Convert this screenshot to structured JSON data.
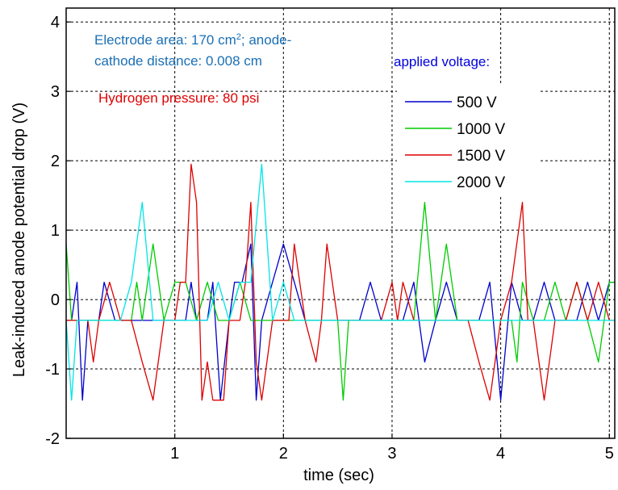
{
  "chart_data": {
    "type": "line",
    "xlabel": "time (sec)",
    "ylabel": "Leak-induced anode potential drop (V)",
    "xlim": [
      0,
      5.05
    ],
    "ylim": [
      -2,
      4.2
    ],
    "xticks": [
      1,
      2,
      3,
      4,
      5
    ],
    "yticks": [
      -2,
      -1,
      0,
      1,
      2,
      3,
      4
    ],
    "grid": true,
    "annotations": {
      "electrode_line1_pre": "Electrode area: 170 cm",
      "electrode_sup": "2",
      "electrode_line1_post": "; anode-",
      "electrode_line2": "cathode distance: 0.008 cm",
      "hydrogen": "Hydrogen pressure: 80 psi",
      "legend_title": "applied voltage:"
    },
    "legend_placement": "top-right",
    "series": [
      {
        "name": "500 V",
        "color": "#0000cc",
        "points": [
          [
            0,
            -0.3
          ],
          [
            0.05,
            -0.3
          ],
          [
            0.1,
            0.25
          ],
          [
            0.15,
            -1.45
          ],
          [
            0.2,
            -0.3
          ],
          [
            0.3,
            -0.3
          ],
          [
            0.35,
            0.25
          ],
          [
            0.45,
            -0.3
          ],
          [
            0.6,
            -0.3
          ],
          [
            0.7,
            -0.3
          ],
          [
            0.8,
            -0.3
          ],
          [
            1.0,
            -0.3
          ],
          [
            1.1,
            -0.3
          ],
          [
            1.15,
            0.25
          ],
          [
            1.2,
            -0.3
          ],
          [
            1.3,
            -0.3
          ],
          [
            1.35,
            0.25
          ],
          [
            1.42,
            -1.45
          ],
          [
            1.5,
            -0.3
          ],
          [
            1.55,
            0.25
          ],
          [
            1.62,
            0.25
          ],
          [
            1.7,
            0.8
          ],
          [
            1.75,
            -1.45
          ],
          [
            1.8,
            -0.3
          ],
          [
            1.9,
            0.25
          ],
          [
            2.0,
            0.8
          ],
          [
            2.1,
            0.25
          ],
          [
            2.2,
            -0.3
          ],
          [
            2.5,
            -0.3
          ],
          [
            2.7,
            -0.3
          ],
          [
            2.8,
            0.25
          ],
          [
            2.9,
            -0.3
          ],
          [
            3.0,
            -0.3
          ],
          [
            3.1,
            -0.3
          ],
          [
            3.2,
            0.25
          ],
          [
            3.3,
            -0.9
          ],
          [
            3.4,
            -0.3
          ],
          [
            3.5,
            0.25
          ],
          [
            3.6,
            -0.3
          ],
          [
            3.8,
            -0.3
          ],
          [
            3.9,
            0.25
          ],
          [
            4.0,
            -1.45
          ],
          [
            4.1,
            0.25
          ],
          [
            4.2,
            -0.3
          ],
          [
            4.3,
            -0.3
          ],
          [
            4.4,
            0.25
          ],
          [
            4.5,
            -0.3
          ],
          [
            4.7,
            -0.3
          ],
          [
            4.8,
            0.25
          ],
          [
            4.9,
            -0.3
          ],
          [
            5.0,
            0.25
          ],
          [
            5.05,
            0.25
          ]
        ]
      },
      {
        "name": "1000 V",
        "color": "#00cc00",
        "points": [
          [
            0,
            0.8
          ],
          [
            0.05,
            -0.3
          ],
          [
            0.1,
            -0.3
          ],
          [
            0.2,
            -0.3
          ],
          [
            0.3,
            -0.3
          ],
          [
            0.4,
            -0.3
          ],
          [
            0.5,
            -0.3
          ],
          [
            0.6,
            -0.3
          ],
          [
            0.65,
            0.25
          ],
          [
            0.7,
            -0.3
          ],
          [
            0.8,
            0.8
          ],
          [
            0.9,
            -0.3
          ],
          [
            1.0,
            0.25
          ],
          [
            1.1,
            0.25
          ],
          [
            1.2,
            -0.3
          ],
          [
            1.3,
            0.25
          ],
          [
            1.4,
            -0.3
          ],
          [
            1.5,
            -0.3
          ],
          [
            1.6,
            0.25
          ],
          [
            1.7,
            -0.3
          ],
          [
            1.8,
            -0.3
          ],
          [
            1.9,
            -0.3
          ],
          [
            2.0,
            -0.3
          ],
          [
            2.1,
            -0.3
          ],
          [
            2.2,
            -0.3
          ],
          [
            2.3,
            -0.3
          ],
          [
            2.4,
            -0.3
          ],
          [
            2.5,
            -0.3
          ],
          [
            2.55,
            -1.45
          ],
          [
            2.6,
            -0.3
          ],
          [
            2.7,
            -0.3
          ],
          [
            2.8,
            -0.3
          ],
          [
            2.9,
            -0.3
          ],
          [
            3.0,
            -0.3
          ],
          [
            3.1,
            -0.3
          ],
          [
            3.2,
            -0.3
          ],
          [
            3.3,
            1.4
          ],
          [
            3.4,
            -0.3
          ],
          [
            3.5,
            0.8
          ],
          [
            3.6,
            -0.3
          ],
          [
            3.7,
            -0.3
          ],
          [
            3.8,
            -0.3
          ],
          [
            3.9,
            -0.3
          ],
          [
            4.0,
            -0.3
          ],
          [
            4.1,
            -0.3
          ],
          [
            4.15,
            -0.9
          ],
          [
            4.2,
            0.25
          ],
          [
            4.3,
            -0.3
          ],
          [
            4.4,
            -0.3
          ],
          [
            4.5,
            0.25
          ],
          [
            4.6,
            -0.3
          ],
          [
            4.7,
            0.25
          ],
          [
            4.8,
            -0.3
          ],
          [
            4.9,
            -0.9
          ],
          [
            5.0,
            0.25
          ],
          [
            5.05,
            0.25
          ]
        ]
      },
      {
        "name": "1500 V",
        "color": "#dd0000",
        "points": [
          [
            0,
            -0.3
          ],
          [
            0.1,
            -0.3
          ],
          [
            0.15,
            -0.3
          ],
          [
            0.2,
            -0.3
          ],
          [
            0.25,
            -0.9
          ],
          [
            0.3,
            -0.3
          ],
          [
            0.4,
            0.25
          ],
          [
            0.5,
            -0.3
          ],
          [
            0.6,
            -0.3
          ],
          [
            0.7,
            -0.9
          ],
          [
            0.8,
            -1.45
          ],
          [
            0.9,
            -0.3
          ],
          [
            1.0,
            -0.3
          ],
          [
            1.05,
            0.25
          ],
          [
            1.1,
            0.25
          ],
          [
            1.15,
            1.95
          ],
          [
            1.2,
            1.4
          ],
          [
            1.25,
            -1.45
          ],
          [
            1.3,
            -0.9
          ],
          [
            1.35,
            -1.45
          ],
          [
            1.45,
            -1.45
          ],
          [
            1.5,
            -0.3
          ],
          [
            1.6,
            -0.3
          ],
          [
            1.65,
            0.25
          ],
          [
            1.7,
            1.4
          ],
          [
            1.75,
            -0.9
          ],
          [
            1.8,
            -1.45
          ],
          [
            1.9,
            -0.3
          ],
          [
            2.0,
            -0.3
          ],
          [
            2.05,
            -0.3
          ],
          [
            2.1,
            0.8
          ],
          [
            2.2,
            -0.3
          ],
          [
            2.3,
            -0.9
          ],
          [
            2.35,
            -0.3
          ],
          [
            2.4,
            0.8
          ],
          [
            2.5,
            -0.3
          ],
          [
            2.6,
            -0.3
          ],
          [
            2.7,
            -0.3
          ],
          [
            2.8,
            -0.3
          ],
          [
            2.9,
            -0.3
          ],
          [
            3.0,
            0.25
          ],
          [
            3.05,
            -0.3
          ],
          [
            3.1,
            0.25
          ],
          [
            3.2,
            -0.3
          ],
          [
            3.3,
            -0.3
          ],
          [
            3.4,
            -0.3
          ],
          [
            3.5,
            -0.3
          ],
          [
            3.6,
            -0.3
          ],
          [
            3.7,
            -0.3
          ],
          [
            3.8,
            -0.9
          ],
          [
            3.9,
            -1.45
          ],
          [
            4.0,
            -0.3
          ],
          [
            4.1,
            0.25
          ],
          [
            4.2,
            1.4
          ],
          [
            4.25,
            -0.3
          ],
          [
            4.3,
            -0.3
          ],
          [
            4.4,
            -1.45
          ],
          [
            4.5,
            -0.3
          ],
          [
            4.6,
            -0.3
          ],
          [
            4.7,
            0.25
          ],
          [
            4.8,
            -0.3
          ],
          [
            4.9,
            0.25
          ],
          [
            5.0,
            -0.3
          ],
          [
            5.05,
            -0.3
          ]
        ]
      },
      {
        "name": "2000 V",
        "color": "#00e5e5",
        "points": [
          [
            0,
            -0.3
          ],
          [
            0.05,
            -1.45
          ],
          [
            0.1,
            -0.3
          ],
          [
            0.2,
            -0.3
          ],
          [
            0.3,
            -0.3
          ],
          [
            0.4,
            -0.3
          ],
          [
            0.5,
            -0.3
          ],
          [
            0.6,
            0.25
          ],
          [
            0.7,
            1.4
          ],
          [
            0.8,
            -0.3
          ],
          [
            0.9,
            -0.3
          ],
          [
            1.0,
            -0.3
          ],
          [
            1.1,
            -0.3
          ],
          [
            1.2,
            -0.3
          ],
          [
            1.3,
            -0.3
          ],
          [
            1.4,
            0.25
          ],
          [
            1.5,
            -0.3
          ],
          [
            1.6,
            0.25
          ],
          [
            1.7,
            0.25
          ],
          [
            1.8,
            1.95
          ],
          [
            1.9,
            -0.3
          ],
          [
            2.0,
            0.25
          ],
          [
            2.1,
            -0.3
          ],
          [
            2.2,
            -0.3
          ],
          [
            2.3,
            -0.3
          ],
          [
            2.4,
            -0.3
          ],
          [
            2.5,
            -0.3
          ],
          [
            2.6,
            -0.3
          ],
          [
            2.7,
            -0.3
          ],
          [
            2.8,
            -0.3
          ],
          [
            2.9,
            -0.3
          ],
          [
            3.0,
            -0.3
          ],
          [
            3.1,
            -0.3
          ],
          [
            3.2,
            -0.3
          ],
          [
            3.3,
            -0.3
          ],
          [
            3.4,
            -0.3
          ],
          [
            3.5,
            -0.3
          ],
          [
            3.6,
            -0.3
          ],
          [
            3.7,
            -0.3
          ],
          [
            3.8,
            -0.3
          ],
          [
            3.9,
            -0.3
          ],
          [
            4.0,
            -0.3
          ],
          [
            4.1,
            -0.3
          ],
          [
            4.2,
            -0.3
          ],
          [
            4.3,
            -0.3
          ],
          [
            4.4,
            -0.3
          ],
          [
            4.5,
            -0.3
          ],
          [
            4.6,
            -0.3
          ],
          [
            4.7,
            -0.3
          ],
          [
            4.8,
            -0.3
          ],
          [
            4.9,
            -0.3
          ],
          [
            5.0,
            -0.3
          ],
          [
            5.05,
            -0.3
          ]
        ]
      }
    ]
  }
}
